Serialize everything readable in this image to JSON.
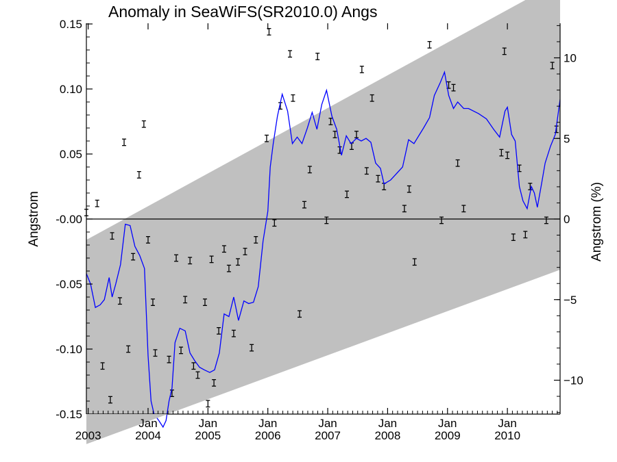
{
  "chart_data": {
    "type": "line",
    "title": "Anomaly in SeaWiFS(SR2010.0) Angs",
    "ylabel": "Angstrom",
    "y2label": "Angstrom (%)",
    "ylim": [
      -0.15,
      0.15
    ],
    "y2lim": [
      -12,
      12
    ],
    "xlim": [
      2002.97,
      2010.88
    ],
    "yticks": [
      {
        "v": 0.15,
        "label": "0.15"
      },
      {
        "v": 0.1,
        "label": "0.10"
      },
      {
        "v": 0.05,
        "label": "0.05"
      },
      {
        "v": 0.0,
        "label": "-0.00"
      },
      {
        "v": -0.05,
        "label": "-0.05"
      },
      {
        "v": -0.1,
        "label": "-0.10"
      },
      {
        "v": -0.15,
        "label": "-0.15"
      }
    ],
    "y2ticks": [
      {
        "v": 10,
        "label": "10"
      },
      {
        "v": 5,
        "label": "5"
      },
      {
        "v": 0,
        "label": "0"
      },
      {
        "v": -5,
        "label": "-5"
      },
      {
        "v": -10,
        "label": "-10"
      }
    ],
    "xticks": [
      {
        "x": 2003.0,
        "month": "",
        "year": "2003"
      },
      {
        "x": 2004.0,
        "month": "Jan",
        "year": "2004"
      },
      {
        "x": 2005.0,
        "month": "Jan",
        "year": "2005"
      },
      {
        "x": 2006.0,
        "month": "Jan",
        "year": "2006"
      },
      {
        "x": 2007.0,
        "month": "Jan",
        "year": "2007"
      },
      {
        "x": 2008.0,
        "month": "Jan",
        "year": "2008"
      },
      {
        "x": 2009.0,
        "month": "Jan",
        "year": "2009"
      },
      {
        "x": 2010.0,
        "month": "Jan",
        "year": "2010"
      }
    ],
    "grey_band": {
      "upper": [
        [
          2002.97,
          -0.016
        ],
        [
          2010.88,
          0.183
        ]
      ],
      "lower": [
        [
          2002.97,
          -0.173
        ],
        [
          2010.88,
          -0.039
        ]
      ]
    },
    "zero_line": 0,
    "colors": {
      "line": "#0000ff",
      "band": "#c0c0c0",
      "points": "#000000"
    },
    "series": [
      {
        "kind": "line",
        "values": [
          [
            2002.97,
            -0.042
          ],
          [
            2003.04,
            -0.05
          ],
          [
            2003.12,
            -0.068
          ],
          [
            2003.2,
            -0.066
          ],
          [
            2003.27,
            -0.062
          ],
          [
            2003.35,
            -0.045
          ],
          [
            2003.4,
            -0.06
          ],
          [
            2003.46,
            -0.05
          ],
          [
            2003.54,
            -0.035
          ],
          [
            2003.62,
            -0.004
          ],
          [
            2003.7,
            -0.005
          ],
          [
            2003.78,
            -0.021
          ],
          [
            2003.86,
            -0.028
          ],
          [
            2003.94,
            -0.038
          ],
          [
            2004.0,
            -0.105
          ],
          [
            2004.05,
            -0.14
          ],
          [
            2004.1,
            -0.15
          ],
          [
            2004.18,
            -0.155
          ],
          [
            2004.25,
            -0.16
          ],
          [
            2004.3,
            -0.155
          ],
          [
            2004.35,
            -0.14
          ],
          [
            2004.4,
            -0.13
          ],
          [
            2004.45,
            -0.095
          ],
          [
            2004.53,
            -0.084
          ],
          [
            2004.62,
            -0.086
          ],
          [
            2004.7,
            -0.103
          ],
          [
            2004.78,
            -0.109
          ],
          [
            2004.86,
            -0.114
          ],
          [
            2004.94,
            -0.116
          ],
          [
            2005.03,
            -0.118
          ],
          [
            2005.11,
            -0.116
          ],
          [
            2005.19,
            -0.103
          ],
          [
            2005.27,
            -0.073
          ],
          [
            2005.35,
            -0.075
          ],
          [
            2005.43,
            -0.06
          ],
          [
            2005.51,
            -0.078
          ],
          [
            2005.6,
            -0.063
          ],
          [
            2005.68,
            -0.065
          ],
          [
            2005.76,
            -0.064
          ],
          [
            2005.84,
            -0.052
          ],
          [
            2005.92,
            -0.017
          ],
          [
            2006.0,
            0.006
          ],
          [
            2006.04,
            0.04
          ],
          [
            2006.09,
            0.058
          ],
          [
            2006.16,
            0.079
          ],
          [
            2006.24,
            0.096
          ],
          [
            2006.33,
            0.083
          ],
          [
            2006.41,
            0.058
          ],
          [
            2006.49,
            0.063
          ],
          [
            2006.57,
            0.058
          ],
          [
            2006.66,
            0.07
          ],
          [
            2006.74,
            0.082
          ],
          [
            2006.82,
            0.069
          ],
          [
            2006.9,
            0.088
          ],
          [
            2006.98,
            0.099
          ],
          [
            2007.07,
            0.079
          ],
          [
            2007.15,
            0.069
          ],
          [
            2007.23,
            0.049
          ],
          [
            2007.31,
            0.064
          ],
          [
            2007.39,
            0.058
          ],
          [
            2007.48,
            0.062
          ],
          [
            2007.56,
            0.06
          ],
          [
            2007.64,
            0.062
          ],
          [
            2007.72,
            0.059
          ],
          [
            2007.8,
            0.043
          ],
          [
            2007.88,
            0.039
          ],
          [
            2007.94,
            0.027
          ],
          [
            2008.05,
            0.03
          ],
          [
            2008.15,
            0.035
          ],
          [
            2008.25,
            0.04
          ],
          [
            2008.35,
            0.061
          ],
          [
            2008.44,
            0.058
          ],
          [
            2008.52,
            0.064
          ],
          [
            2008.6,
            0.07
          ],
          [
            2008.7,
            0.078
          ],
          [
            2008.78,
            0.095
          ],
          [
            2008.88,
            0.105
          ],
          [
            2008.95,
            0.113
          ],
          [
            2009.02,
            0.095
          ],
          [
            2009.1,
            0.085
          ],
          [
            2009.17,
            0.09
          ],
          [
            2009.27,
            0.085
          ],
          [
            2009.35,
            0.085
          ],
          [
            2009.52,
            0.081
          ],
          [
            2009.65,
            0.077
          ],
          [
            2009.77,
            0.069
          ],
          [
            2009.87,
            0.063
          ],
          [
            2009.96,
            0.083
          ],
          [
            2010.0,
            0.086
          ],
          [
            2010.07,
            0.065
          ],
          [
            2010.13,
            0.06
          ],
          [
            2010.2,
            0.025
          ],
          [
            2010.26,
            0.014
          ],
          [
            2010.33,
            0.008
          ],
          [
            2010.4,
            0.025
          ],
          [
            2010.45,
            0.02
          ],
          [
            2010.5,
            0.009
          ],
          [
            2010.57,
            0.027
          ],
          [
            2010.63,
            0.043
          ],
          [
            2010.72,
            0.056
          ],
          [
            2010.8,
            0.065
          ],
          [
            2010.88,
            0.092
          ]
        ]
      },
      {
        "kind": "points_with_error_bars",
        "error": 0.0025,
        "values": [
          [
            2002.97,
            0.005
          ],
          [
            2003.15,
            0.012
          ],
          [
            2003.24,
            -0.113
          ],
          [
            2003.37,
            -0.139
          ],
          [
            2003.4,
            -0.013
          ],
          [
            2003.53,
            -0.063
          ],
          [
            2003.6,
            0.059
          ],
          [
            2003.67,
            -0.1
          ],
          [
            2003.75,
            -0.029
          ],
          [
            2003.85,
            0.034
          ],
          [
            2003.93,
            0.073
          ],
          [
            2004.0,
            -0.016
          ],
          [
            2004.08,
            -0.064
          ],
          [
            2004.12,
            -0.103
          ],
          [
            2004.35,
            -0.108
          ],
          [
            2004.4,
            -0.134
          ],
          [
            2004.47,
            -0.03
          ],
          [
            2004.55,
            -0.101
          ],
          [
            2004.62,
            -0.062
          ],
          [
            2004.7,
            -0.032
          ],
          [
            2004.76,
            -0.113
          ],
          [
            2004.83,
            -0.12
          ],
          [
            2004.95,
            -0.064
          ],
          [
            2005.0,
            -0.142
          ],
          [
            2005.06,
            -0.031
          ],
          [
            2005.1,
            -0.126
          ],
          [
            2005.18,
            -0.086
          ],
          [
            2005.27,
            -0.023
          ],
          [
            2005.35,
            -0.038
          ],
          [
            2005.43,
            -0.088
          ],
          [
            2005.5,
            -0.033
          ],
          [
            2005.62,
            -0.025
          ],
          [
            2005.73,
            -0.099
          ],
          [
            2005.8,
            -0.016
          ],
          [
            2005.98,
            0.062
          ],
          [
            2006.02,
            0.144
          ],
          [
            2006.11,
            -0.003
          ],
          [
            2006.21,
            0.087
          ],
          [
            2006.37,
            0.127
          ],
          [
            2006.42,
            0.093
          ],
          [
            2006.53,
            -0.073
          ],
          [
            2006.61,
            0.011
          ],
          [
            2006.7,
            0.038
          ],
          [
            2006.83,
            0.125
          ],
          [
            2006.98,
            -0.001
          ],
          [
            2007.05,
            0.075
          ],
          [
            2007.12,
            0.065
          ],
          [
            2007.2,
            0.053
          ],
          [
            2007.32,
            0.019
          ],
          [
            2007.4,
            0.056
          ],
          [
            2007.48,
            0.065
          ],
          [
            2007.57,
            0.115
          ],
          [
            2007.65,
            0.037
          ],
          [
            2007.74,
            0.093
          ],
          [
            2007.84,
            0.031
          ],
          [
            2007.94,
            0.025
          ],
          [
            2008.28,
            0.008
          ],
          [
            2008.36,
            0.023
          ],
          [
            2008.45,
            -0.033
          ],
          [
            2008.7,
            0.134
          ],
          [
            2008.9,
            -0.001
          ],
          [
            2009.02,
            0.103
          ],
          [
            2009.1,
            0.101
          ],
          [
            2009.17,
            0.043
          ],
          [
            2009.27,
            0.008
          ],
          [
            2009.9,
            0.051
          ],
          [
            2009.95,
            0.129
          ],
          [
            2010.0,
            0.049
          ],
          [
            2010.1,
            -0.014
          ],
          [
            2010.2,
            0.039
          ],
          [
            2010.3,
            -0.012
          ],
          [
            2010.38,
            0.025
          ],
          [
            2010.65,
            -0.001
          ],
          [
            2010.75,
            0.118
          ],
          [
            2010.82,
            0.069
          ]
        ]
      }
    ]
  }
}
